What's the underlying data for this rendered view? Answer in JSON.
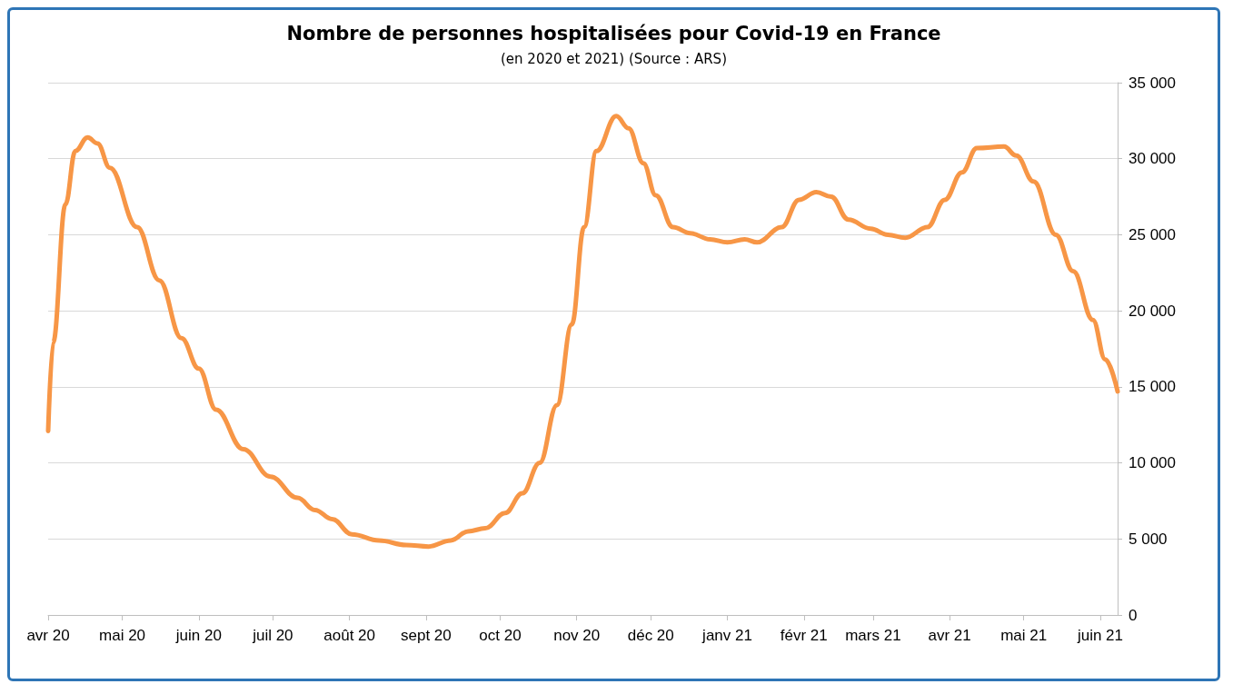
{
  "chart_data": {
    "type": "line",
    "title": "Nombre de personnes hospitalisées pour Covid-19 en France",
    "subtitle": "(en 2020 et 2021) (Source : ARS)",
    "x": [
      "2020-04-01",
      "2020-04-03",
      "2020-04-08",
      "2020-04-12",
      "2020-04-17",
      "2020-04-21",
      "2020-04-26",
      "2020-05-07",
      "2020-05-16",
      "2020-05-25",
      "2020-06-01",
      "2020-06-08",
      "2020-06-19",
      "2020-06-30",
      "2020-07-11",
      "2020-07-18",
      "2020-07-25",
      "2020-08-02",
      "2020-08-13",
      "2020-08-24",
      "2020-09-02",
      "2020-09-11",
      "2020-09-18",
      "2020-09-25",
      "2020-10-03",
      "2020-10-10",
      "2020-10-17",
      "2020-10-24",
      "2020-10-30",
      "2020-11-04",
      "2020-11-09",
      "2020-11-17",
      "2020-11-22",
      "2020-11-28",
      "2020-12-03",
      "2020-12-10",
      "2020-12-17",
      "2020-12-25",
      "2021-01-01",
      "2021-01-08",
      "2021-01-13",
      "2021-01-23",
      "2021-01-30",
      "2021-02-06",
      "2021-02-12",
      "2021-02-19",
      "2021-02-28",
      "2021-03-07",
      "2021-03-14",
      "2021-03-23",
      "2021-03-30",
      "2021-04-06",
      "2021-04-12",
      "2021-04-23",
      "2021-04-28",
      "2021-05-05",
      "2021-05-14",
      "2021-05-21",
      "2021-05-29",
      "2021-06-03",
      "2021-06-08"
    ],
    "series": [
      {
        "color": "#f79646",
        "values": [
          12100,
          17900,
          27000,
          30500,
          31400,
          31000,
          29400,
          25500,
          22000,
          18200,
          16200,
          13500,
          10900,
          9100,
          7700,
          6900,
          6300,
          5300,
          4900,
          4600,
          4500,
          4900,
          5500,
          5700,
          6700,
          8000,
          10000,
          13800,
          19100,
          25500,
          30500,
          32800,
          32000,
          29700,
          27600,
          25500,
          25100,
          24700,
          24500,
          24700,
          24500,
          25500,
          27300,
          27800,
          27500,
          26000,
          25400,
          25000,
          24800,
          25500,
          27300,
          29100,
          30700,
          30800,
          30200,
          28500,
          25000,
          22600,
          19400,
          16800,
          14700
        ]
      }
    ],
    "xlim": [
      "2020-04-01",
      "2021-06-08"
    ],
    "xticks": [
      {
        "value": "2020-04-01",
        "label": "avr 20"
      },
      {
        "value": "2020-05-01",
        "label": "mai 20"
      },
      {
        "value": "2020-06-01",
        "label": "juin 20"
      },
      {
        "value": "2020-07-01",
        "label": "juil 20"
      },
      {
        "value": "2020-08-01",
        "label": "août 20"
      },
      {
        "value": "2020-09-01",
        "label": "sept 20"
      },
      {
        "value": "2020-10-01",
        "label": "oct 20"
      },
      {
        "value": "2020-11-01",
        "label": "nov 20"
      },
      {
        "value": "2020-12-01",
        "label": "déc 20"
      },
      {
        "value": "2021-01-01",
        "label": "janv 21"
      },
      {
        "value": "2021-02-01",
        "label": "févr 21"
      },
      {
        "value": "2021-03-01",
        "label": "mars 21"
      },
      {
        "value": "2021-04-01",
        "label": "avr 21"
      },
      {
        "value": "2021-05-01",
        "label": "mai 21"
      },
      {
        "value": "2021-06-01",
        "label": "juin 21"
      }
    ],
    "ylim": [
      0,
      35000
    ],
    "yticks": [
      0,
      {
        "value": 5000,
        "label": "5 000"
      },
      {
        "value": 10000,
        "label": "10 000"
      },
      {
        "value": 15000,
        "label": "15 000"
      },
      {
        "value": 20000,
        "label": "20 000"
      },
      {
        "value": 25000,
        "label": "25 000"
      },
      {
        "value": 30000,
        "label": "30 000"
      },
      {
        "value": 35000,
        "label": "35 000"
      }
    ],
    "grid": "y",
    "marker": "none",
    "line_style": "solid"
  }
}
